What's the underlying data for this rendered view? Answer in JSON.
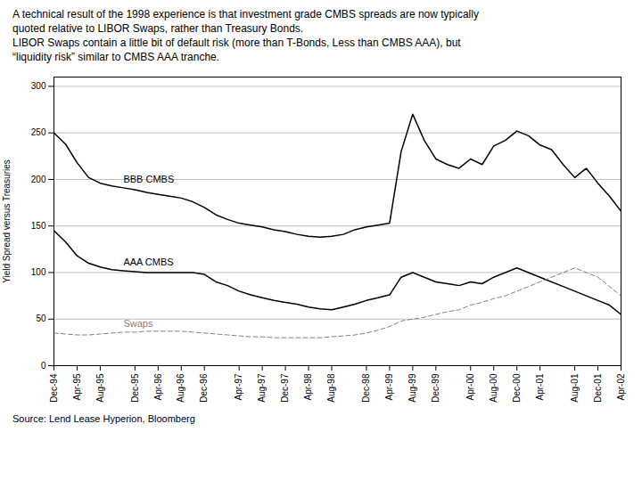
{
  "chart_data": {
    "type": "line",
    "subtitle": [
      "A technical result of the 1998 experience is that investment grade CMBS spreads are now typically",
      "quoted relative to LIBOR Swaps, rather than Treasury Bonds.",
      "LIBOR Swaps contain a little bit of default risk (more than T-Bonds, Less than CMBS AAA), but",
      "“liquidity risk” similar to CMBS AAA tranche."
    ],
    "caption": "Source: Lend Lease Hyperion, Bloomberg",
    "y_label": "Yield Spread versus Treasuries",
    "ylim": [
      0,
      310
    ],
    "yticks": [
      0,
      50,
      100,
      150,
      200,
      250,
      300
    ],
    "grid": true,
    "categories": [
      "Dec-94",
      null,
      "Apr-95",
      null,
      "Aug-95",
      null,
      null,
      "Dec-95",
      null,
      "Apr-96",
      null,
      "Aug-96",
      null,
      "Dec-96",
      null,
      null,
      "Apr-97",
      null,
      "Aug-97",
      null,
      "Dec-97",
      null,
      "Apr-98",
      null,
      "Aug-98",
      null,
      null,
      "Dec-98",
      null,
      "Apr-99",
      null,
      "Aug-99",
      null,
      "Dec-99",
      null,
      null,
      "Apr-00",
      null,
      "Aug-00",
      null,
      "Dec-00",
      null,
      "Apr-01",
      null,
      null,
      "Aug-01",
      null,
      "Dec-01",
      null,
      "Apr-02"
    ],
    "series": [
      {
        "name": "BBB CMBS",
        "color": "black",
        "line_style": "solid",
        "values": [
          250,
          238,
          218,
          202,
          196,
          193,
          191,
          189,
          186,
          184,
          182,
          180,
          176,
          170,
          162,
          157,
          153,
          151,
          149,
          146,
          144,
          141,
          139,
          138,
          139,
          141,
          146,
          149,
          151,
          153,
          230,
          270,
          242,
          222,
          216,
          212,
          222,
          216,
          236,
          242,
          252,
          247,
          237,
          232,
          216,
          202,
          212,
          196,
          182,
          166
        ]
      },
      {
        "name": "AAA CMBS",
        "color": "black",
        "line_style": "solid",
        "values": [
          145,
          133,
          118,
          110,
          106,
          103,
          102,
          101,
          100,
          100,
          100,
          100,
          100,
          98,
          90,
          86,
          80,
          76,
          73,
          70,
          68,
          66,
          63,
          61,
          60,
          63,
          66,
          70,
          73,
          76,
          95,
          100,
          95,
          90,
          88,
          86,
          90,
          88,
          95,
          100,
          105,
          100,
          95,
          90,
          85,
          80,
          75,
          70,
          65,
          55
        ]
      },
      {
        "name": "Swaps",
        "color": "gray",
        "line_style": "dashed",
        "values": [
          35,
          34,
          33,
          33,
          34,
          35,
          36,
          36,
          37,
          37,
          37,
          37,
          36,
          35,
          34,
          33,
          32,
          31,
          31,
          30,
          30,
          30,
          30,
          30,
          31,
          32,
          33,
          35,
          38,
          42,
          48,
          50,
          52,
          55,
          58,
          60,
          65,
          68,
          72,
          75,
          80,
          85,
          90,
          95,
          100,
          105,
          100,
          95,
          85,
          75
        ]
      }
    ]
  }
}
